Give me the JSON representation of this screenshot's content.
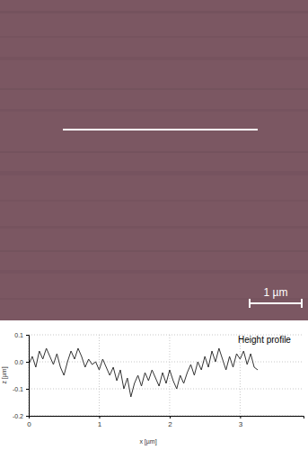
{
  "image": {
    "scale_bar": "1 µm"
  },
  "chart_data": {
    "type": "line",
    "title": "Height profile",
    "x_label": "x [µm]",
    "y_label": "z [µm]",
    "x": [
      0.0,
      0.05,
      0.1,
      0.15,
      0.2,
      0.25,
      0.3,
      0.35,
      0.4,
      0.45,
      0.5,
      0.55,
      0.6,
      0.65,
      0.7,
      0.75,
      0.8,
      0.85,
      0.9,
      0.95,
      1.0,
      1.05,
      1.1,
      1.15,
      1.2,
      1.25,
      1.3,
      1.35,
      1.4,
      1.45,
      1.5,
      1.55,
      1.6,
      1.65,
      1.7,
      1.75,
      1.8,
      1.85,
      1.9,
      1.95,
      2.0,
      2.05,
      2.1,
      2.15,
      2.2,
      2.25,
      2.3,
      2.35,
      2.4,
      2.45,
      2.5,
      2.55,
      2.6,
      2.65,
      2.7,
      2.75,
      2.8,
      2.85,
      2.9,
      2.95,
      3.0,
      3.05,
      3.1,
      3.15,
      3.2,
      3.25
    ],
    "series": [
      {
        "name": "Height profile",
        "color": "#333333",
        "values": [
          -0.01,
          0.02,
          -0.02,
          0.04,
          0.01,
          0.05,
          0.02,
          -0.01,
          0.03,
          -0.02,
          -0.05,
          0.0,
          0.04,
          0.01,
          0.05,
          0.02,
          -0.02,
          0.01,
          -0.01,
          0.0,
          -0.03,
          0.01,
          -0.02,
          -0.05,
          -0.02,
          -0.07,
          -0.03,
          -0.1,
          -0.06,
          -0.13,
          -0.08,
          -0.05,
          -0.09,
          -0.04,
          -0.07,
          -0.03,
          -0.06,
          -0.09,
          -0.04,
          -0.08,
          -0.03,
          -0.07,
          -0.1,
          -0.05,
          -0.08,
          -0.04,
          -0.01,
          -0.05,
          0.0,
          -0.03,
          0.02,
          -0.02,
          0.04,
          0.0,
          0.05,
          0.01,
          -0.03,
          0.02,
          -0.02,
          0.03,
          0.01,
          0.04,
          -0.01,
          0.03,
          -0.02,
          -0.03
        ]
      }
    ],
    "xlim": [
      0,
      3.9
    ],
    "ylim": [
      -0.2,
      0.1
    ],
    "xticks": [
      0,
      1,
      2,
      3
    ],
    "yticks": [
      -0.2,
      -0.1,
      {
        "value": 0,
        "label": "0.0"
      },
      0.1
    ],
    "grid": true
  }
}
